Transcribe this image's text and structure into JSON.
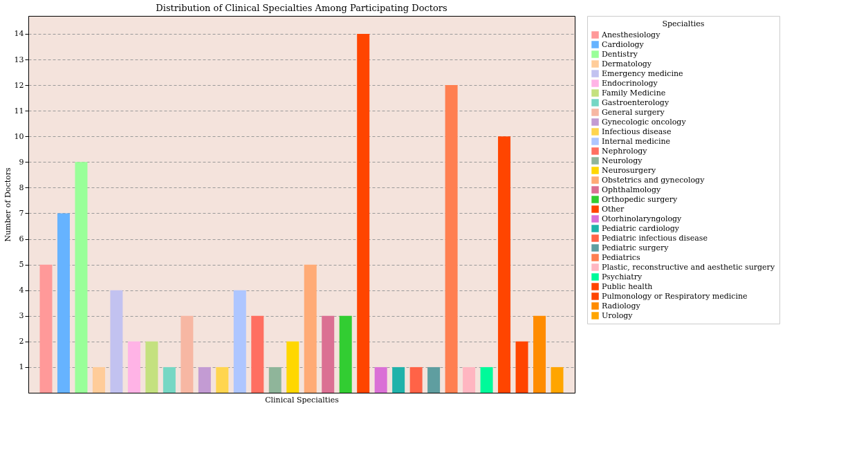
{
  "chart_data": {
    "type": "bar",
    "title": "Distribution of Clinical Specialties Among Participating Doctors",
    "xlabel": "Clinical Specialties",
    "ylabel": "Number of Doctors",
    "legend_title": "Specialties",
    "categories": [
      null,
      null,
      null,
      null,
      null,
      null,
      null,
      null,
      null,
      null,
      null,
      null,
      null,
      null,
      null,
      null,
      null,
      null,
      null,
      null,
      null,
      null,
      null,
      null,
      null,
      null,
      null,
      null,
      null,
      null
    ],
    "series": [
      {
        "name": "Anesthesiology",
        "color": "#ff9999",
        "values": [
          5,
          null,
          null,
          null,
          null,
          null,
          null,
          null,
          null,
          null,
          null,
          null,
          null,
          null,
          null,
          null,
          null,
          null,
          null,
          null,
          null,
          null,
          null,
          null,
          null,
          null,
          null,
          null,
          null,
          null
        ]
      },
      {
        "name": "Cardiology",
        "color": "#66b3ff",
        "values": [
          null,
          7,
          null,
          null,
          null,
          null,
          null,
          null,
          null,
          null,
          null,
          null,
          null,
          null,
          null,
          null,
          null,
          null,
          null,
          null,
          null,
          null,
          null,
          null,
          null,
          null,
          null,
          null,
          null,
          null
        ]
      },
      {
        "name": "Dentistry",
        "color": "#99ff99",
        "values": [
          null,
          null,
          9,
          null,
          null,
          null,
          null,
          null,
          null,
          null,
          null,
          null,
          null,
          null,
          null,
          null,
          null,
          null,
          null,
          null,
          null,
          null,
          null,
          null,
          null,
          null,
          null,
          null,
          null,
          null
        ]
      },
      {
        "name": "Dermatology",
        "color": "#ffcc99",
        "values": [
          null,
          null,
          null,
          1,
          null,
          null,
          null,
          null,
          null,
          null,
          null,
          null,
          null,
          null,
          null,
          null,
          null,
          null,
          null,
          null,
          null,
          null,
          null,
          null,
          null,
          null,
          null,
          null,
          null,
          null
        ]
      },
      {
        "name": "Emergency medicine",
        "color": "#c2c2f0",
        "values": [
          null,
          null,
          null,
          null,
          4,
          null,
          null,
          null,
          null,
          null,
          null,
          null,
          null,
          null,
          null,
          null,
          null,
          null,
          null,
          null,
          null,
          null,
          null,
          null,
          null,
          null,
          null,
          null,
          null,
          null
        ]
      },
      {
        "name": "Endocrinology",
        "color": "#ffb3e6",
        "values": [
          null,
          null,
          null,
          null,
          null,
          2,
          null,
          null,
          null,
          null,
          null,
          null,
          null,
          null,
          null,
          null,
          null,
          null,
          null,
          null,
          null,
          null,
          null,
          null,
          null,
          null,
          null,
          null,
          null,
          null
        ]
      },
      {
        "name": "Family Medicine",
        "color": "#c4e17f",
        "values": [
          null,
          null,
          null,
          null,
          null,
          null,
          2,
          null,
          null,
          null,
          null,
          null,
          null,
          null,
          null,
          null,
          null,
          null,
          null,
          null,
          null,
          null,
          null,
          null,
          null,
          null,
          null,
          null,
          null,
          null
        ]
      },
      {
        "name": "Gastroenterology",
        "color": "#76d7c4",
        "values": [
          null,
          null,
          null,
          null,
          null,
          null,
          null,
          1,
          null,
          null,
          null,
          null,
          null,
          null,
          null,
          null,
          null,
          null,
          null,
          null,
          null,
          null,
          null,
          null,
          null,
          null,
          null,
          null,
          null,
          null
        ]
      },
      {
        "name": "General surgery",
        "color": "#f7b7a3",
        "values": [
          null,
          null,
          null,
          null,
          null,
          null,
          null,
          null,
          3,
          null,
          null,
          null,
          null,
          null,
          null,
          null,
          null,
          null,
          null,
          null,
          null,
          null,
          null,
          null,
          null,
          null,
          null,
          null,
          null,
          null
        ]
      },
      {
        "name": "Gynecologic oncology",
        "color": "#c39bd3",
        "values": [
          null,
          null,
          null,
          null,
          null,
          null,
          null,
          null,
          null,
          1,
          null,
          null,
          null,
          null,
          null,
          null,
          null,
          null,
          null,
          null,
          null,
          null,
          null,
          null,
          null,
          null,
          null,
          null,
          null,
          null
        ]
      },
      {
        "name": "Infectious disease",
        "color": "#ffd54f",
        "values": [
          null,
          null,
          null,
          null,
          null,
          null,
          null,
          null,
          null,
          null,
          1,
          null,
          null,
          null,
          null,
          null,
          null,
          null,
          null,
          null,
          null,
          null,
          null,
          null,
          null,
          null,
          null,
          null,
          null,
          null
        ]
      },
      {
        "name": "Internal medicine",
        "color": "#aec6ff",
        "values": [
          null,
          null,
          null,
          null,
          null,
          null,
          null,
          null,
          null,
          null,
          null,
          4,
          null,
          null,
          null,
          null,
          null,
          null,
          null,
          null,
          null,
          null,
          null,
          null,
          null,
          null,
          null,
          null,
          null,
          null
        ]
      },
      {
        "name": "Nephrology",
        "color": "#ff6f61",
        "values": [
          null,
          null,
          null,
          null,
          null,
          null,
          null,
          null,
          null,
          null,
          null,
          null,
          3,
          null,
          null,
          null,
          null,
          null,
          null,
          null,
          null,
          null,
          null,
          null,
          null,
          null,
          null,
          null,
          null,
          null
        ]
      },
      {
        "name": "Neurology",
        "color": "#8fb59a",
        "values": [
          null,
          null,
          null,
          null,
          null,
          null,
          null,
          null,
          null,
          null,
          null,
          null,
          null,
          1,
          null,
          null,
          null,
          null,
          null,
          null,
          null,
          null,
          null,
          null,
          null,
          null,
          null,
          null,
          null,
          null
        ]
      },
      {
        "name": "Neurosurgery",
        "color": "#ffd700",
        "values": [
          null,
          null,
          null,
          null,
          null,
          null,
          null,
          null,
          null,
          null,
          null,
          null,
          null,
          null,
          2,
          null,
          null,
          null,
          null,
          null,
          null,
          null,
          null,
          null,
          null,
          null,
          null,
          null,
          null,
          null
        ]
      },
      {
        "name": "Obstetrics and gynecology",
        "color": "#ffab76",
        "values": [
          null,
          null,
          null,
          null,
          null,
          null,
          null,
          null,
          null,
          null,
          null,
          null,
          null,
          null,
          null,
          5,
          null,
          null,
          null,
          null,
          null,
          null,
          null,
          null,
          null,
          null,
          null,
          null,
          null,
          null
        ]
      },
      {
        "name": "Ophthalmology",
        "color": "#db7093",
        "values": [
          null,
          null,
          null,
          null,
          null,
          null,
          null,
          null,
          null,
          null,
          null,
          null,
          null,
          null,
          null,
          null,
          3,
          null,
          null,
          null,
          null,
          null,
          null,
          null,
          null,
          null,
          null,
          null,
          null,
          null
        ]
      },
      {
        "name": "Orthopedic surgery",
        "color": "#32cd32",
        "values": [
          null,
          null,
          null,
          null,
          null,
          null,
          null,
          null,
          null,
          null,
          null,
          null,
          null,
          null,
          null,
          null,
          null,
          3,
          null,
          null,
          null,
          null,
          null,
          null,
          null,
          null,
          null,
          null,
          null,
          null
        ]
      },
      {
        "name": "Other",
        "color": "#ff4500",
        "values": [
          null,
          null,
          null,
          null,
          null,
          null,
          null,
          null,
          null,
          null,
          null,
          null,
          null,
          null,
          null,
          null,
          null,
          null,
          14,
          null,
          null,
          null,
          null,
          null,
          null,
          null,
          null,
          null,
          null,
          null
        ]
      },
      {
        "name": "Otorhinolaryngology",
        "color": "#da70d6",
        "values": [
          null,
          null,
          null,
          null,
          null,
          null,
          null,
          null,
          null,
          null,
          null,
          null,
          null,
          null,
          null,
          null,
          null,
          null,
          null,
          1,
          null,
          null,
          null,
          null,
          null,
          null,
          null,
          null,
          null,
          null
        ]
      },
      {
        "name": "Pediatric cardiology",
        "color": "#20b2aa",
        "values": [
          null,
          null,
          null,
          null,
          null,
          null,
          null,
          null,
          null,
          null,
          null,
          null,
          null,
          null,
          null,
          null,
          null,
          null,
          null,
          null,
          1,
          null,
          null,
          null,
          null,
          null,
          null,
          null,
          null,
          null
        ]
      },
      {
        "name": "Pediatric infectious disease",
        "color": "#ff6347",
        "values": [
          null,
          null,
          null,
          null,
          null,
          null,
          null,
          null,
          null,
          null,
          null,
          null,
          null,
          null,
          null,
          null,
          null,
          null,
          null,
          null,
          null,
          1,
          null,
          null,
          null,
          null,
          null,
          null,
          null,
          null
        ]
      },
      {
        "name": "Pediatric surgery",
        "color": "#5f9ea0",
        "values": [
          null,
          null,
          null,
          null,
          null,
          null,
          null,
          null,
          null,
          null,
          null,
          null,
          null,
          null,
          null,
          null,
          null,
          null,
          null,
          null,
          null,
          null,
          1,
          null,
          null,
          null,
          null,
          null,
          null,
          null
        ]
      },
      {
        "name": "Pediatrics",
        "color": "#ff7f50",
        "values": [
          null,
          null,
          null,
          null,
          null,
          null,
          null,
          null,
          null,
          null,
          null,
          null,
          null,
          null,
          null,
          null,
          null,
          null,
          null,
          null,
          null,
          null,
          null,
          12,
          null,
          null,
          null,
          null,
          null,
          null
        ]
      },
      {
        "name": "Plastic, reconstructive and aesthetic surgery",
        "color": "#ffb6c1",
        "values": [
          null,
          null,
          null,
          null,
          null,
          null,
          null,
          null,
          null,
          null,
          null,
          null,
          null,
          null,
          null,
          null,
          null,
          null,
          null,
          null,
          null,
          null,
          null,
          null,
          1,
          null,
          null,
          null,
          null,
          null
        ]
      },
      {
        "name": "Psychiatry",
        "color": "#00fa9a",
        "values": [
          null,
          null,
          null,
          null,
          null,
          null,
          null,
          null,
          null,
          null,
          null,
          null,
          null,
          null,
          null,
          null,
          null,
          null,
          null,
          null,
          null,
          null,
          null,
          null,
          null,
          1,
          null,
          null,
          null,
          null
        ]
      },
      {
        "name": "Public health",
        "color": "#ff4500",
        "values": [
          null,
          null,
          null,
          null,
          null,
          null,
          null,
          null,
          null,
          null,
          null,
          null,
          null,
          null,
          null,
          null,
          null,
          null,
          null,
          null,
          null,
          null,
          null,
          null,
          null,
          null,
          10,
          null,
          null,
          null
        ]
      },
      {
        "name": "Pulmonology or Respiratory medicine",
        "color": "#ff4500",
        "values": [
          null,
          null,
          null,
          null,
          null,
          null,
          null,
          null,
          null,
          null,
          null,
          null,
          null,
          null,
          null,
          null,
          null,
          null,
          null,
          null,
          null,
          null,
          null,
          null,
          null,
          null,
          null,
          2,
          null,
          null
        ]
      },
      {
        "name": "Radiology",
        "color": "#ff8c00",
        "values": [
          null,
          null,
          null,
          null,
          null,
          null,
          null,
          null,
          null,
          null,
          null,
          null,
          null,
          null,
          null,
          null,
          null,
          null,
          null,
          null,
          null,
          null,
          null,
          null,
          null,
          null,
          null,
          null,
          3,
          null
        ]
      },
      {
        "name": "Urology",
        "color": "#ffa500",
        "values": [
          null,
          null,
          null,
          null,
          null,
          null,
          null,
          null,
          null,
          null,
          null,
          null,
          null,
          null,
          null,
          null,
          null,
          null,
          null,
          null,
          null,
          null,
          null,
          null,
          null,
          null,
          null,
          null,
          null,
          1
        ]
      }
    ],
    "ylim": [
      0,
      14.7
    ],
    "yticks": [
      1,
      2,
      3,
      4,
      5,
      6,
      7,
      8,
      9,
      10,
      11,
      12,
      13,
      14
    ],
    "grid": "y",
    "legend": "right",
    "tick_labels": "y"
  }
}
